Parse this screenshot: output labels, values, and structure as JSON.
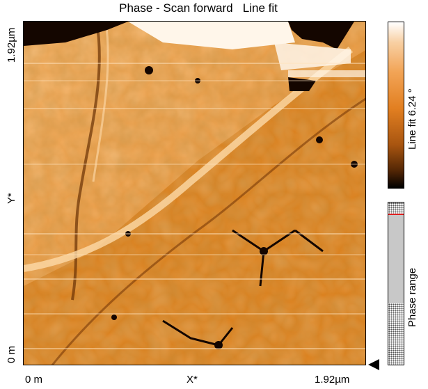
{
  "title": "Phase - Scan forward   Line fit",
  "y_axis": {
    "top_label": "1.92µm",
    "mid_label": "Y*",
    "bottom_label": "0 m"
  },
  "x_axis": {
    "left_label": "0 m",
    "mid_label": "X*",
    "right_label": "1.92µm"
  },
  "colorbar": {
    "label": "Line fit 6.24 °",
    "colors": [
      "#ffffff",
      "#f2a456",
      "#e27f21",
      "#a85510",
      "#000000"
    ]
  },
  "range_bar": {
    "label": "Phase range",
    "marker_color": "#e02020"
  },
  "scan_colors": {
    "base": "#e0841f",
    "light": "#f7b46a",
    "dark": "#6a3206",
    "black": "#140600",
    "white": "#fff6ea"
  }
}
